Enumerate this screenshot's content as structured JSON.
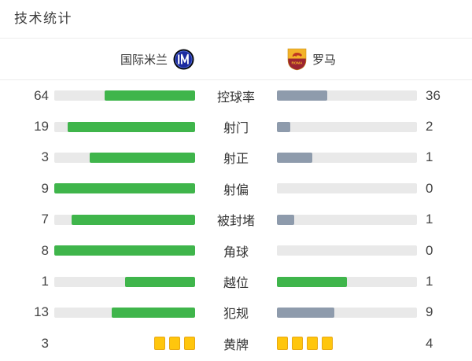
{
  "title": "技术统计",
  "teams": {
    "home": {
      "name": "国际米兰"
    },
    "away": {
      "name": "罗马"
    }
  },
  "colors": {
    "home_fill": "#3fb54b",
    "away_fill": "#8e9bac",
    "tie_fill": "#3fb54b",
    "track": "#e9e9e9",
    "card_fill": "#ffc60d",
    "card_border": "#e8a713",
    "separator": "#ececec"
  },
  "stats": [
    {
      "key": "possession",
      "label": "控球率",
      "home": 64,
      "away": 36,
      "away_style": "away"
    },
    {
      "key": "shots",
      "label": "射门",
      "home": 19,
      "away": 2,
      "away_style": "away"
    },
    {
      "key": "shots-on-target",
      "label": "射正",
      "home": 3,
      "away": 1,
      "away_style": "away"
    },
    {
      "key": "shots-off-target",
      "label": "射偏",
      "home": 9,
      "away": 0,
      "away_style": "away"
    },
    {
      "key": "blocked-shots",
      "label": "被封堵",
      "home": 7,
      "away": 1,
      "away_style": "away"
    },
    {
      "key": "corners",
      "label": "角球",
      "home": 8,
      "away": 0,
      "away_style": "away"
    },
    {
      "key": "offsides",
      "label": "越位",
      "home": 1,
      "away": 1,
      "away_style": "tie"
    },
    {
      "key": "fouls",
      "label": "犯规",
      "home": 13,
      "away": 9,
      "away_style": "away"
    },
    {
      "key": "yellow-cards",
      "label": "黄牌",
      "home": 3,
      "away": 4,
      "type": "cards"
    }
  ],
  "chart_data": {
    "type": "bar",
    "title": "技术统计",
    "categories": [
      "控球率",
      "射门",
      "射正",
      "射偏",
      "被封堵",
      "角球",
      "越位",
      "犯规",
      "黄牌"
    ],
    "series": [
      {
        "name": "国际米兰",
        "values": [
          64,
          19,
          3,
          9,
          7,
          8,
          1,
          13,
          3
        ]
      },
      {
        "name": "罗马",
        "values": [
          36,
          2,
          1,
          0,
          1,
          0,
          1,
          9,
          4
        ]
      }
    ],
    "layout": "paired-horizontal-bars, labels centered between bars, home values left / away values right",
    "notes": "fill fraction of each bar = value / (home+away); home bars green anchored right, away bars slate-gray anchored left, tied row (越位) shows green on both sides, 黄牌 row rendered as yellow card icons"
  }
}
